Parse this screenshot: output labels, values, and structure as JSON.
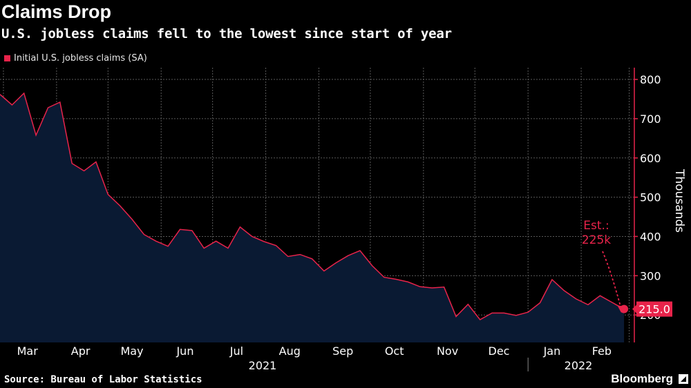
{
  "header": {
    "title": "Claims Drop",
    "subtitle": "U.S. jobless claims fell to the lowest since start of year"
  },
  "footer": {
    "source": "Source: Bureau of Labor Statistics",
    "brand": "Bloomberg"
  },
  "colors": {
    "background": "#000000",
    "series_line": "#e8234a",
    "area_fill": "#0a1a33",
    "grid": "#5a5a5a",
    "text": "#ffffff"
  },
  "chart_data": {
    "type": "area",
    "title": "Claims Drop",
    "subtitle": "U.S. jobless claims fell to the lowest since start of year",
    "ylabel": "Thousands",
    "ylim": [
      130,
      830
    ],
    "yticks": [
      200,
      300,
      400,
      500,
      600,
      700,
      800
    ],
    "grid": true,
    "legend_placement": "top-left",
    "month_ticks": [
      "Mar",
      "Apr",
      "May",
      "Jun",
      "Jul",
      "Aug",
      "Sep",
      "Oct",
      "Nov",
      "Dec",
      "Jan",
      "Feb"
    ],
    "year_labels": [
      {
        "label": "2021",
        "after_month": "Aug"
      },
      {
        "label": "2022",
        "after_month": "Jan"
      }
    ],
    "series": [
      {
        "name": "Initial U.S. jobless claims (SA)",
        "x": [
          "2021-02-27",
          "2021-03-06",
          "2021-03-13",
          "2021-03-20",
          "2021-03-27",
          "2021-04-03",
          "2021-04-10",
          "2021-04-17",
          "2021-04-24",
          "2021-05-01",
          "2021-05-08",
          "2021-05-15",
          "2021-05-22",
          "2021-05-29",
          "2021-06-05",
          "2021-06-12",
          "2021-06-19",
          "2021-06-26",
          "2021-07-03",
          "2021-07-10",
          "2021-07-17",
          "2021-07-24",
          "2021-07-31",
          "2021-08-07",
          "2021-08-14",
          "2021-08-21",
          "2021-08-28",
          "2021-09-04",
          "2021-09-11",
          "2021-09-18",
          "2021-09-25",
          "2021-10-02",
          "2021-10-09",
          "2021-10-16",
          "2021-10-23",
          "2021-10-30",
          "2021-11-06",
          "2021-11-13",
          "2021-11-20",
          "2021-11-27",
          "2021-12-04",
          "2021-12-11",
          "2021-12-18",
          "2021-12-25",
          "2022-01-01",
          "2022-01-08",
          "2022-01-15",
          "2022-01-22",
          "2022-01-29",
          "2022-02-05",
          "2022-02-12",
          "2022-02-19"
        ],
        "values": [
          762,
          735,
          765,
          658,
          728,
          742,
          586,
          567,
          590,
          507,
          478,
          444,
          405,
          388,
          375,
          418,
          415,
          370,
          388,
          370,
          424,
          400,
          387,
          377,
          349,
          354,
          343,
          312,
          333,
          351,
          364,
          326,
          296,
          291,
          284,
          272,
          269,
          271,
          196,
          227,
          188,
          205,
          205,
          199,
          207,
          231,
          290,
          262,
          241,
          226,
          249,
          232
        ]
      }
    ],
    "last_value_label": "215.0",
    "last_value": 215,
    "last_value_date": "2022-02-26",
    "estimate_label": [
      "Est.:",
      "225k"
    ],
    "estimate_value": 225
  }
}
